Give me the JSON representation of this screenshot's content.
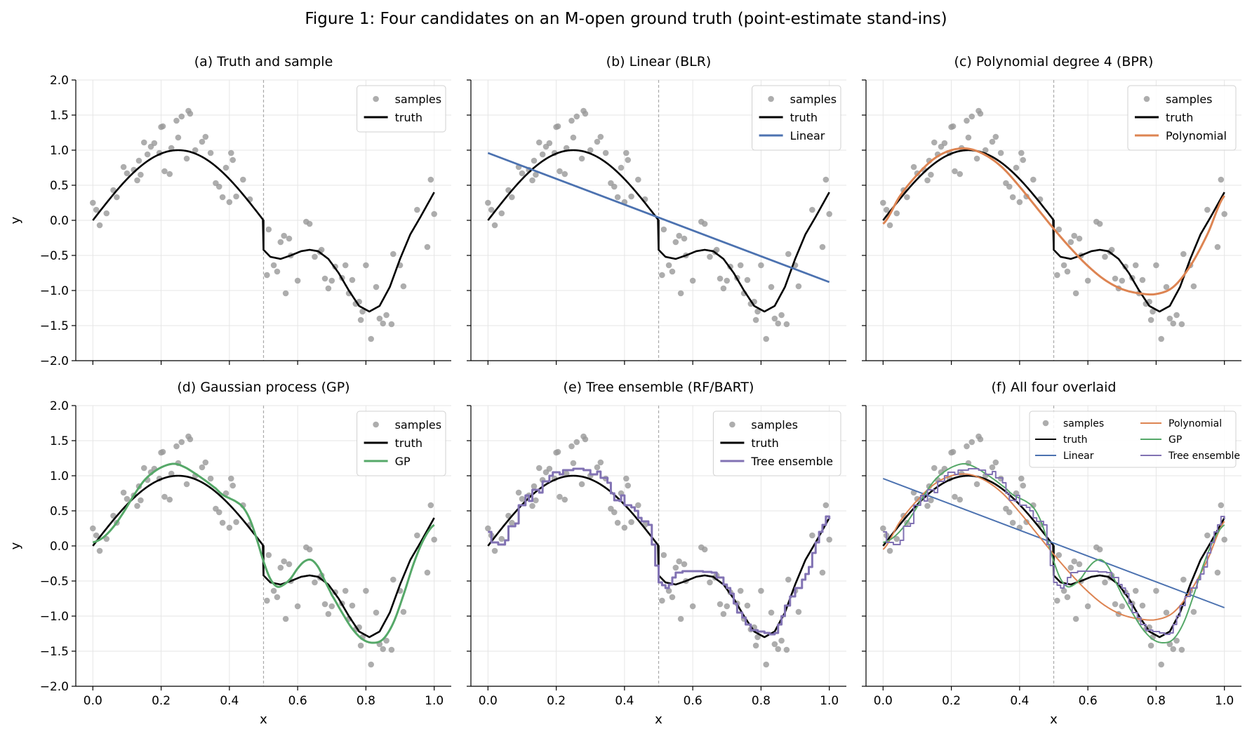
{
  "figure": {
    "title": "Figure 1: Four candidates on an M-open ground truth (point-estimate stand-ins)"
  },
  "colors": {
    "samples": "#999999",
    "truth": "#000000",
    "Linear": "#4c72b0",
    "Polynomial": "#dd8452",
    "GP": "#55a868",
    "Tree ensemble": "#8172b3",
    "divider": "#aaaaaa",
    "grid": "#e6e6e6"
  },
  "chart_data": [
    {
      "type": "line",
      "title": "(a) Truth and sample",
      "xlabel": "",
      "ylabel": "y",
      "xlim": [
        -0.05,
        1.05
      ],
      "ylim": [
        -2.0,
        2.0
      ],
      "xticks": [
        "0.0",
        "0.2",
        "0.4",
        "0.6",
        "0.8",
        "1.0"
      ],
      "yticks": [
        "2.0",
        "1.5",
        "1.0",
        "0.5",
        "0.0",
        "−0.5",
        "−1.0",
        "−1.5",
        "−2.0"
      ],
      "divider_x": 0.5,
      "grid": true,
      "legend": {
        "placement": "top-right",
        "entries": [
          "samples",
          "truth"
        ]
      },
      "series": [
        {
          "name": "samples"
        },
        {
          "name": "truth"
        }
      ]
    },
    {
      "type": "line",
      "title": "(b) Linear (BLR)",
      "xlabel": "",
      "ylabel": "",
      "xlim": [
        -0.05,
        1.05
      ],
      "ylim": [
        -2.0,
        2.0
      ],
      "xticks": [
        "0.0",
        "0.2",
        "0.4",
        "0.6",
        "0.8",
        "1.0"
      ],
      "yticks": [],
      "divider_x": 0.5,
      "grid": true,
      "legend": {
        "placement": "top-right",
        "entries": [
          "samples",
          "truth",
          "Linear"
        ]
      },
      "series": [
        {
          "name": "samples"
        },
        {
          "name": "truth"
        },
        {
          "name": "Linear",
          "x": [
            0,
            1
          ],
          "y": [
            0.96,
            -0.88
          ]
        }
      ]
    },
    {
      "type": "line",
      "title": "(c) Polynomial degree 4 (BPR)",
      "xlabel": "",
      "ylabel": "",
      "xlim": [
        -0.05,
        1.05
      ],
      "ylim": [
        -2.0,
        2.0
      ],
      "xticks": [
        "0.0",
        "0.2",
        "0.4",
        "0.6",
        "0.8",
        "1.0"
      ],
      "yticks": [],
      "divider_x": 0.5,
      "grid": true,
      "legend": {
        "placement": "top-right",
        "entries": [
          "samples",
          "truth",
          "Polynomial"
        ]
      },
      "series": [
        {
          "name": "samples"
        },
        {
          "name": "truth"
        },
        {
          "name": "Polynomial"
        }
      ]
    },
    {
      "type": "line",
      "title": "(d) Gaussian process (GP)",
      "xlabel": "x",
      "ylabel": "y",
      "xlim": [
        -0.05,
        1.05
      ],
      "ylim": [
        -2.0,
        2.0
      ],
      "xticks": [
        "0.0",
        "0.2",
        "0.4",
        "0.6",
        "0.8",
        "1.0"
      ],
      "yticks": [
        "2.0",
        "1.5",
        "1.0",
        "0.5",
        "0.0",
        "−0.5",
        "−1.0",
        "−1.5",
        "−2.0"
      ],
      "divider_x": 0.5,
      "grid": true,
      "legend": {
        "placement": "top-right",
        "entries": [
          "samples",
          "truth",
          "GP"
        ]
      },
      "series": [
        {
          "name": "samples"
        },
        {
          "name": "truth"
        },
        {
          "name": "GP"
        }
      ]
    },
    {
      "type": "line",
      "title": "(e) Tree ensemble (RF/BART)",
      "xlabel": "x",
      "ylabel": "",
      "xlim": [
        -0.05,
        1.05
      ],
      "ylim": [
        -2.0,
        2.0
      ],
      "xticks": [
        "0.0",
        "0.2",
        "0.4",
        "0.6",
        "0.8",
        "1.0"
      ],
      "yticks": [],
      "divider_x": 0.5,
      "grid": true,
      "legend": {
        "placement": "top-right",
        "entries": [
          "samples",
          "truth",
          "Tree ensemble"
        ]
      },
      "series": [
        {
          "name": "samples"
        },
        {
          "name": "truth"
        },
        {
          "name": "Tree ensemble"
        }
      ]
    },
    {
      "type": "line",
      "title": "(f) All four overlaid",
      "xlabel": "x",
      "ylabel": "",
      "xlim": [
        -0.05,
        1.05
      ],
      "ylim": [
        -2.0,
        2.0
      ],
      "xticks": [
        "0.0",
        "0.2",
        "0.4",
        "0.6",
        "0.8",
        "1.0"
      ],
      "yticks": [],
      "divider_x": 0.5,
      "grid": true,
      "legend": {
        "placement": "top-right",
        "columns": 2,
        "entries": [
          "samples",
          "truth",
          "Linear",
          "Polynomial",
          "GP",
          "Tree ensemble"
        ]
      },
      "series": [
        {
          "name": "samples"
        },
        {
          "name": "truth"
        },
        {
          "name": "Linear",
          "x": [
            0,
            1
          ],
          "y": [
            0.96,
            -0.88
          ]
        },
        {
          "name": "Polynomial"
        },
        {
          "name": "GP"
        },
        {
          "name": "Tree ensemble"
        }
      ]
    }
  ],
  "samples": {
    "x": [
      0.0,
      0.01,
      0.02,
      0.04,
      0.06,
      0.07,
      0.09,
      0.1,
      0.12,
      0.13,
      0.135,
      0.14,
      0.15,
      0.16,
      0.17,
      0.18,
      0.195,
      0.2,
      0.205,
      0.21,
      0.225,
      0.23,
      0.245,
      0.25,
      0.26,
      0.275,
      0.28,
      0.285,
      0.3,
      0.32,
      0.33,
      0.345,
      0.36,
      0.37,
      0.38,
      0.39,
      0.4,
      0.405,
      0.41,
      0.42,
      0.44,
      0.46,
      0.51,
      0.515,
      0.53,
      0.54,
      0.55,
      0.56,
      0.565,
      0.575,
      0.58,
      0.6,
      0.625,
      0.635,
      0.65,
      0.665,
      0.67,
      0.68,
      0.69,
      0.7,
      0.71,
      0.73,
      0.74,
      0.75,
      0.76,
      0.77,
      0.78,
      0.785,
      0.79,
      0.8,
      0.815,
      0.83,
      0.84,
      0.85,
      0.86,
      0.875,
      0.88,
      0.9,
      0.91,
      0.95,
      0.98,
      0.99,
      1.0
    ],
    "y": [
      0.25,
      0.15,
      -0.07,
      0.1,
      0.43,
      0.33,
      0.76,
      0.67,
      0.72,
      0.57,
      0.85,
      0.65,
      1.11,
      0.94,
      1.05,
      1.1,
      0.96,
      1.33,
      1.34,
      0.7,
      0.66,
      1.03,
      1.42,
      1.18,
      1.48,
      0.88,
      1.56,
      1.52,
      1.0,
      1.12,
      1.19,
      0.96,
      0.53,
      0.48,
      0.33,
      0.75,
      0.26,
      0.96,
      0.86,
      0.34,
      0.58,
      0.3,
      -0.78,
      -0.13,
      -0.64,
      -0.73,
      -0.31,
      -0.22,
      -1.04,
      -0.26,
      -0.5,
      -0.86,
      -0.02,
      -0.05,
      -0.52,
      -0.45,
      -0.42,
      -0.83,
      -0.97,
      -0.86,
      -0.66,
      -0.82,
      -0.64,
      -1.04,
      -0.85,
      -1.19,
      -1.16,
      -1.42,
      -1.3,
      -0.64,
      -1.69,
      -0.95,
      -1.4,
      -1.47,
      -1.35,
      -1.48,
      -0.48,
      -0.64,
      -0.94,
      0.15,
      -0.38,
      0.58,
      0.09
    ]
  }
}
